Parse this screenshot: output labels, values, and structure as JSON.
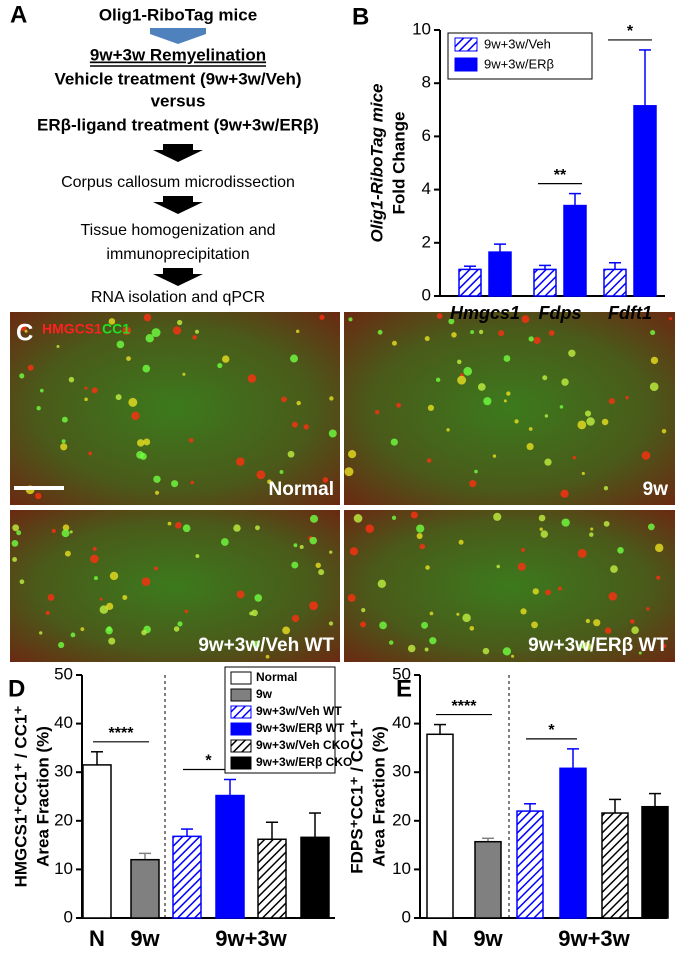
{
  "panel_a": {
    "label": "A",
    "steps": [
      "Olig1-RiboTag mice",
      "9w+3w Remyelination",
      "Vehicle treatment (9w+3w/Veh)",
      "versus",
      "ERβ-ligand treatment (9w+3w/ERβ)",
      "Corpus callosum microdissection",
      "Tissue homogenization and",
      "immunoprecipitation",
      "RNA isolation and qPCR"
    ]
  },
  "panel_c": {
    "label": "C",
    "stain_1": "HMGCS1",
    "stain_2": "CC1",
    "images": [
      "Normal",
      "9w",
      "9w+3w/Veh WT",
      "9w+3w/ERβ WT"
    ]
  },
  "chart_data": [
    {
      "type": "grouped_bar",
      "panel": "B",
      "ylabel": [
        "Olig1-RiboTag mice",
        "Fold Change"
      ],
      "categories": [
        "Hmgcs1",
        "Fdps",
        "Fdft1"
      ],
      "series": [
        {
          "name": "9w+3w/Veh",
          "color": "#0000ff",
          "hatch": true,
          "values": [
            1.0,
            1.0,
            1.0
          ],
          "errors": [
            0.12,
            0.15,
            0.25
          ]
        },
        {
          "name": "9w+3w/ERβ",
          "color": "#0000ff",
          "hatch": false,
          "values": [
            1.65,
            3.4,
            7.15
          ],
          "errors": [
            0.3,
            0.45,
            2.1
          ]
        }
      ],
      "significance": [
        {
          "label": "**",
          "category": 1
        },
        {
          "label": "*",
          "category": 2
        }
      ],
      "ylim": [
        0,
        10
      ],
      "yticks": [
        0,
        2,
        4,
        6,
        8,
        10
      ],
      "legend": "upper left"
    },
    {
      "type": "bar",
      "panel": "D",
      "ylabel": [
        "HMGCS1⁺CC1⁺ / CC1⁺",
        "Area Fraction (%)"
      ],
      "groups": [
        "N",
        "9w",
        "9w+3w"
      ],
      "series_names": [
        "Normal",
        "9w",
        "9w+3w/Veh WT",
        "9w+3w/ERβ WT",
        "9w+3w/Veh CKO",
        "9w+3w/ERβ CKO"
      ],
      "colors": [
        "#ffffff",
        "#808080",
        "#0000ff",
        "#0000ff",
        "#000000",
        "#000000"
      ],
      "hatch": [
        false,
        false,
        true,
        false,
        true,
        false
      ],
      "values": [
        31.5,
        12.0,
        16.8,
        25.2,
        16.2,
        16.6
      ],
      "errors": [
        2.7,
        1.3,
        1.5,
        3.3,
        3.5,
        5.0
      ],
      "significance": [
        {
          "label": "****",
          "bars": [
            0,
            1
          ]
        },
        {
          "label": "*",
          "bars": [
            2,
            3
          ]
        }
      ],
      "ylim": [
        0,
        50
      ],
      "yticks": [
        0,
        10,
        20,
        30,
        40,
        50
      ],
      "legend": "upper right"
    },
    {
      "type": "bar",
      "panel": "E",
      "ylabel": [
        "FDPS⁺CC1⁺ / CC1⁺",
        "Area Fraction (%)"
      ],
      "groups": [
        "N",
        "9w",
        "9w+3w"
      ],
      "colors": [
        "#ffffff",
        "#808080",
        "#0000ff",
        "#0000ff",
        "#000000",
        "#000000"
      ],
      "hatch": [
        false,
        false,
        true,
        false,
        true,
        false
      ],
      "values": [
        37.8,
        15.7,
        22.0,
        30.8,
        21.6,
        22.9
      ],
      "errors": [
        2.0,
        0.7,
        1.5,
        4.0,
        2.8,
        2.7
      ],
      "significance": [
        {
          "label": "****",
          "bars": [
            0,
            1
          ]
        },
        {
          "label": "*",
          "bars": [
            2,
            3
          ]
        }
      ],
      "ylim": [
        0,
        50
      ],
      "yticks": [
        0,
        10,
        20,
        30,
        40,
        50
      ]
    }
  ]
}
